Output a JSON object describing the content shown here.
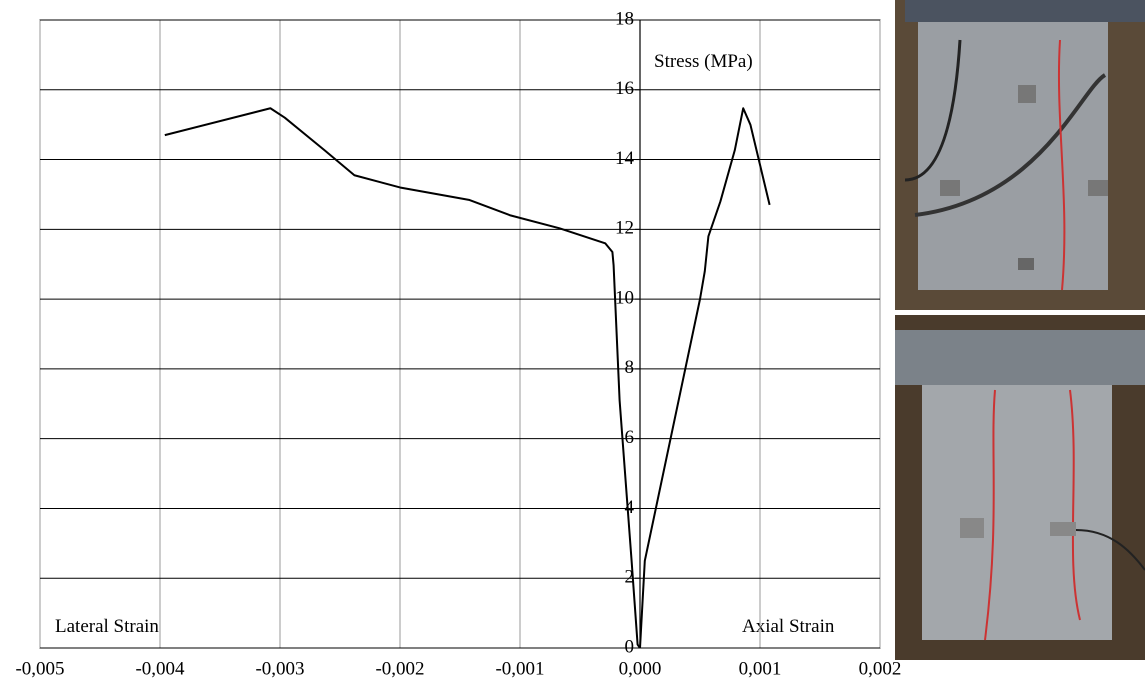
{
  "chart_data": {
    "type": "line",
    "y_label": "Stress (MPa)",
    "annotations": [
      "Lateral Strain",
      "Axial Strain"
    ],
    "series": [
      {
        "color": "#000000",
        "x": [
          -0.00396,
          -0.00308,
          -0.00296,
          -0.00263,
          -0.00238,
          -0.002,
          -0.00142,
          -0.00108,
          -0.00067,
          -0.00029,
          -0.00023,
          -0.00022,
          -0.00017,
          -7e-05,
          -2e-05,
          0
        ],
        "values": [
          14.7,
          15.47,
          15.2,
          14.27,
          13.55,
          13.2,
          12.84,
          12.4,
          12.03,
          11.6,
          11.35,
          10.97,
          7.1,
          2.5,
          0.1,
          0
        ]
      },
      {
        "color": "#000000",
        "x": [
          0,
          4e-05,
          0.0005,
          0.00054,
          0.00057,
          0.00067,
          0.00079,
          0.00086,
          0.00092,
          0.00108
        ],
        "values": [
          0,
          2.5,
          10,
          10.8,
          11.8,
          12.8,
          14.27,
          15.47,
          15,
          12.7
        ]
      }
    ],
    "xlim": [
      -0.005,
      0.002
    ],
    "ylim": [
      0,
      18
    ],
    "xticks": [
      {
        "value": -0.005,
        "label": "-0,005"
      },
      {
        "value": -0.004,
        "label": "-0,004"
      },
      {
        "value": -0.003,
        "label": "-0,003"
      },
      {
        "value": -0.002,
        "label": "-0,002"
      },
      {
        "value": -0.001,
        "label": "-0,001"
      },
      {
        "value": 0,
        "label": "0,000"
      },
      {
        "value": 0.001,
        "label": "0,001"
      },
      {
        "value": 0.002,
        "label": "0,002"
      }
    ],
    "yticks": [
      0,
      2,
      4,
      6,
      8,
      10,
      12,
      14,
      16,
      18
    ],
    "grid": true
  }
}
